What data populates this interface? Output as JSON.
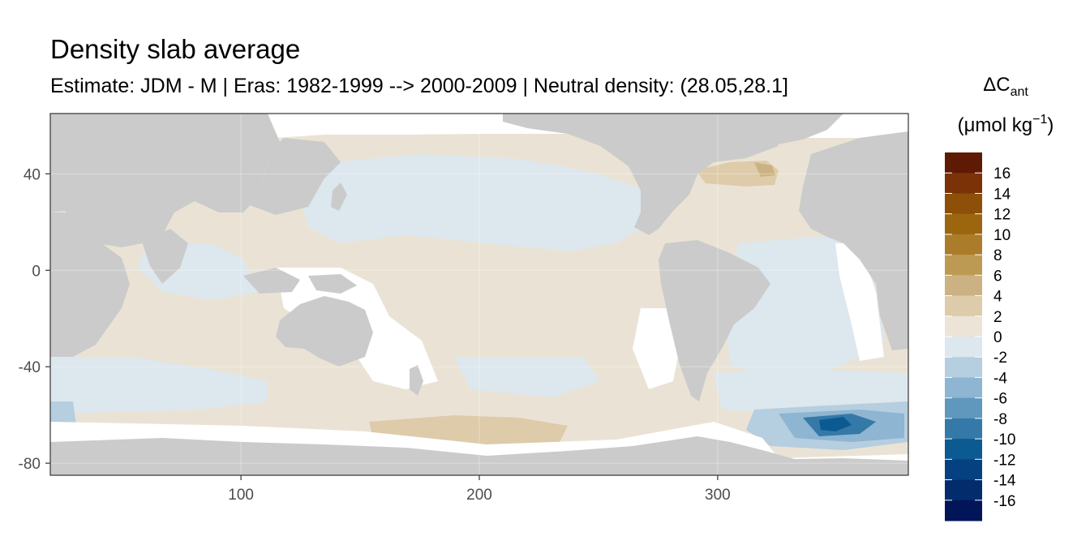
{
  "chart_data": {
    "type": "heatmap",
    "title": "Density slab average",
    "subtitle": "Estimate: JDM - M | Eras: 1982-1999 --> 2000-2009 | Neutral density: (28.05,28.1]",
    "xlabel": "",
    "ylabel": "",
    "xlim": [
      20,
      380
    ],
    "ylim": [
      -85,
      65
    ],
    "x_ticks": [
      100,
      200,
      300
    ],
    "y_ticks": [
      40,
      0,
      -40,
      -80
    ],
    "grid": true,
    "land_color": "#CBCBCB",
    "nodata_color": "#FFFFFF",
    "legend": {
      "title_main": "ΔC",
      "title_sub": "ant",
      "unit_open": "(μmol kg",
      "unit_sup": "−1",
      "unit_close": ")",
      "placement": "right",
      "labels": [
        "16",
        "14",
        "12",
        "10",
        "8",
        "6",
        "4",
        "2",
        "0",
        "-2",
        "-4",
        "-6",
        "-8",
        "-10",
        "-12",
        "-14",
        "-16"
      ],
      "colors": [
        "#5E1A04",
        "#7A3206",
        "#8E4F08",
        "#9C660F",
        "#AB7D2B",
        "#BD9A54",
        "#CCB282",
        "#DDCBAA",
        "#ECE4D6",
        "#DCE7EE",
        "#B5CEE0",
        "#8EB5D1",
        "#5F97BD",
        "#3479A8",
        "#0C5A92",
        "#054180",
        "#032C6D",
        "#021558"
      ]
    },
    "regions": [
      {
        "name": "warm-north-atlantic",
        "bin": "2 to 4",
        "approx_lon": [
          322,
          338
        ],
        "approx_lat": [
          35,
          48
        ]
      },
      {
        "name": "pacific-southern-band",
        "bin": "2 to 4",
        "approx_lon": [
          180,
          255
        ],
        "approx_lat": [
          -75,
          -60
        ]
      },
      {
        "name": "weddell-sea-min",
        "bin": "-10 to -8",
        "approx_lon": [
          340,
          365
        ],
        "approx_lat": [
          -70,
          -60
        ]
      },
      {
        "name": "north-pacific-negative",
        "bin": "-2 to 0",
        "approx_lon": [
          140,
          260
        ],
        "approx_lat": [
          10,
          50
        ]
      }
    ]
  }
}
